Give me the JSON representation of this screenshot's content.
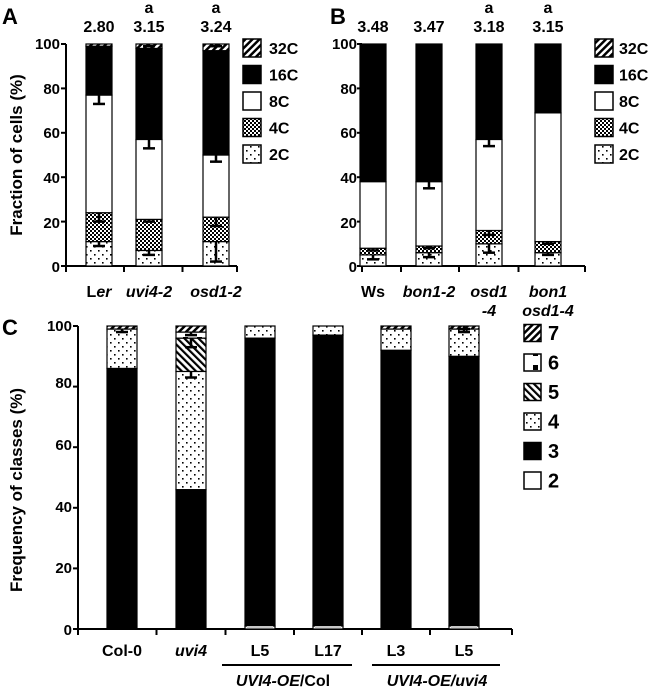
{
  "colors": {
    "black": "#000000",
    "white": "#ffffff",
    "faint": "#c8c8c8"
  },
  "panels": {
    "A": {
      "letter": "A",
      "ylabel": "Fraction of cells (%)",
      "yticks": [
        "0",
        "20",
        "40",
        "60",
        "80",
        "100"
      ]
    },
    "B": {
      "letter": "B",
      "yticks": [
        "0",
        "20",
        "40",
        "60",
        "80",
        "100"
      ]
    },
    "C": {
      "letter": "C",
      "ylabel": "Frequency of classes (%)",
      "yticks": [
        "0",
        "20",
        "40",
        "60",
        "80",
        "100"
      ],
      "groups": [
        {
          "pre": "UVI4-OE",
          "post": "/Col"
        },
        {
          "pre": "UVI4-OE",
          "post": "/uvi4"
        }
      ]
    }
  },
  "chart_data": [
    {
      "type": "bar",
      "stacked": true,
      "ylabel": "Fraction of cells (%)",
      "ylim": [
        0,
        100
      ],
      "categories": [
        "Ler",
        "uvi4-2",
        "osd1-2"
      ],
      "category_parts": [
        [
          {
            "t": "L",
            "i": false
          },
          {
            "t": "er",
            "i": true
          }
        ],
        [
          {
            "t": "uvi4-2",
            "i": true
          }
        ],
        [
          {
            "t": "osd1-2",
            "i": true
          }
        ]
      ],
      "top_values": [
        "2.80",
        "3.15",
        "3.24"
      ],
      "significance": [
        "",
        "a",
        "a"
      ],
      "legend": [
        "32C",
        "16C",
        "8C",
        "4C",
        "2C"
      ],
      "series": [
        {
          "name": "2C",
          "pattern": "dots",
          "values": [
            11,
            7,
            11
          ],
          "errors": [
            2,
            2,
            9
          ]
        },
        {
          "name": "4C",
          "pattern": "checker",
          "values": [
            13,
            14,
            11
          ],
          "errors": [
            4,
            1,
            4
          ]
        },
        {
          "name": "8C",
          "pattern": "white",
          "values": [
            53,
            36,
            28
          ],
          "errors": [
            4,
            4,
            3
          ]
        },
        {
          "name": "16C",
          "pattern": "black",
          "values": [
            22,
            41,
            47
          ],
          "errors": [
            0,
            0,
            0
          ]
        },
        {
          "name": "32C",
          "pattern": "hatch",
          "values": [
            1,
            2,
            3
          ],
          "errors": [
            0,
            1,
            1
          ]
        }
      ]
    },
    {
      "type": "bar",
      "stacked": true,
      "ylim": [
        0,
        100
      ],
      "categories": [
        "Ws",
        "bon1-2",
        "osd1 -4",
        "bon1 osd1-4"
      ],
      "category_parts": [
        [
          {
            "t": "Ws",
            "i": false
          }
        ],
        [
          {
            "t": "bon1-2",
            "i": true
          }
        ],
        [
          {
            "t": "osd1",
            "i": true
          }
        ],
        [
          {
            "t": "bon1",
            "i": true
          }
        ]
      ],
      "category_parts_line2": [
        [],
        [],
        [
          {
            "t": "-4",
            "i": true
          }
        ],
        [
          {
            "t": "osd1-4",
            "i": true
          }
        ]
      ],
      "top_values": [
        "3.48",
        "3.47",
        "3.18",
        "3.15"
      ],
      "significance": [
        "",
        "",
        "a",
        "a"
      ],
      "legend": [
        "32C",
        "16C",
        "8C",
        "4C",
        "2C"
      ],
      "series": [
        {
          "name": "2C",
          "pattern": "dots",
          "values": [
            5,
            6,
            10,
            6
          ],
          "errors": [
            2,
            2,
            4,
            1
          ]
        },
        {
          "name": "4C",
          "pattern": "checker",
          "values": [
            3,
            3,
            6,
            5
          ],
          "errors": [
            1,
            1,
            2,
            1
          ]
        },
        {
          "name": "8C",
          "pattern": "white",
          "values": [
            30,
            29,
            41,
            58
          ],
          "errors": [
            0,
            3,
            3,
            0
          ]
        },
        {
          "name": "16C",
          "pattern": "black",
          "values": [
            62,
            62,
            43,
            31
          ],
          "errors": [
            0,
            0,
            0,
            0
          ]
        },
        {
          "name": "32C",
          "pattern": "hatch",
          "values": [
            0,
            0,
            0,
            0
          ],
          "errors": [
            0,
            0,
            0,
            0
          ]
        }
      ]
    },
    {
      "type": "bar",
      "stacked": true,
      "ylabel": "Frequency of classes (%)",
      "ylim": [
        0,
        100
      ],
      "categories": [
        "Col-0",
        "uvi4",
        "L5",
        "L17",
        "L3",
        "L5"
      ],
      "category_parts": [
        [
          {
            "t": "Col-0",
            "i": false
          }
        ],
        [
          {
            "t": "uvi4",
            "i": true
          }
        ],
        [
          {
            "t": "L5",
            "i": false
          }
        ],
        [
          {
            "t": "L17",
            "i": false
          }
        ],
        [
          {
            "t": "L3",
            "i": false
          }
        ],
        [
          {
            "t": "L5",
            "i": false
          }
        ]
      ],
      "legend": [
        "7",
        "6",
        "5",
        "4",
        "3",
        "2"
      ],
      "series": [
        {
          "name": "2",
          "pattern": "white",
          "values": [
            0,
            0,
            1,
            1,
            0,
            1
          ],
          "errors": [
            0,
            0,
            0,
            0,
            0,
            0
          ]
        },
        {
          "name": "3",
          "pattern": "black",
          "values": [
            86,
            46,
            95,
            96,
            92,
            89
          ],
          "errors": [
            0,
            0,
            0,
            0,
            0,
            0
          ]
        },
        {
          "name": "4",
          "pattern": "dots",
          "values": [
            13,
            39,
            4,
            3,
            7,
            9
          ],
          "errors": [
            1,
            2,
            0,
            0,
            0,
            1
          ]
        },
        {
          "name": "5",
          "pattern": "diag",
          "values": [
            0,
            11,
            0,
            0,
            0,
            0
          ],
          "errors": [
            0,
            3,
            0,
            0,
            0,
            0
          ]
        },
        {
          "name": "6",
          "pattern": "corner",
          "values": [
            0,
            2,
            0,
            0,
            0,
            0
          ],
          "errors": [
            0,
            1,
            0,
            0,
            0,
            0
          ]
        },
        {
          "name": "7",
          "pattern": "hatch",
          "values": [
            1,
            2,
            0,
            0,
            1,
            1
          ],
          "errors": [
            0,
            0,
            0,
            0,
            0,
            1
          ]
        }
      ]
    }
  ]
}
